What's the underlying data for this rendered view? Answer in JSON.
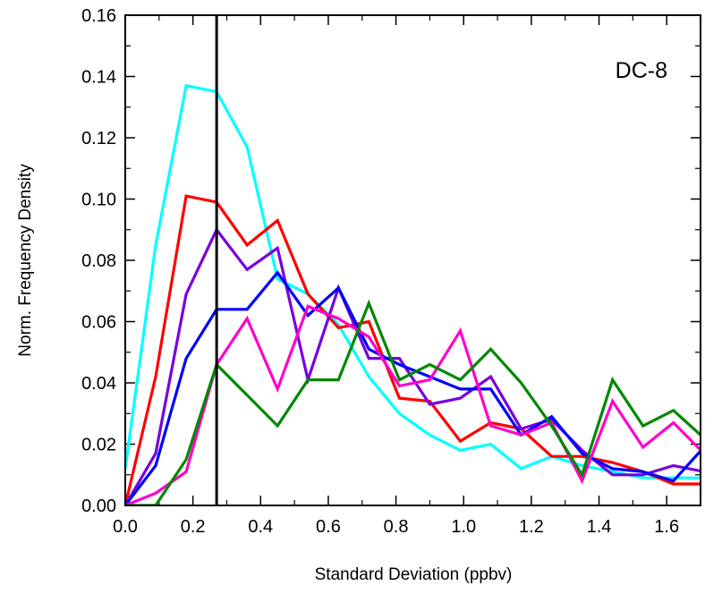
{
  "chart_data": {
    "type": "line",
    "title": "",
    "xlabel": "Standard Deviation (ppbv)",
    "ylabel": "Norm. Frequency Density",
    "annotation": "DC-8",
    "xlim": [
      0,
      1.7
    ],
    "ylim": [
      0,
      0.16
    ],
    "x_ticks": [
      "0.0",
      "0.2",
      "0.4",
      "0.6",
      "0.8",
      "1.0",
      "1.2",
      "1.4",
      "1.6"
    ],
    "y_ticks": [
      "0.00",
      "0.02",
      "0.04",
      "0.06",
      "0.08",
      "0.10",
      "0.12",
      "0.14",
      "0.16"
    ],
    "vertical_line_x": 0.27,
    "vertical_line_color": "#000000",
    "x": [
      0.0,
      0.09,
      0.18,
      0.27,
      0.36,
      0.45,
      0.54,
      0.63,
      0.72,
      0.81,
      0.9,
      0.99,
      1.08,
      1.17,
      1.26,
      1.35,
      1.44,
      1.53,
      1.62,
      1.71
    ],
    "series": [
      {
        "color": "#00ffff",
        "values": [
          0.012,
          0.085,
          0.137,
          0.135,
          0.117,
          0.074,
          0.069,
          0.059,
          0.042,
          0.03,
          0.023,
          0.018,
          0.02,
          0.012,
          0.016,
          0.013,
          0.011,
          0.009,
          0.009,
          0.009
        ]
      },
      {
        "color": "#ff0000",
        "values": [
          0.0,
          0.042,
          0.101,
          0.099,
          0.085,
          0.093,
          0.069,
          0.058,
          0.06,
          0.035,
          0.034,
          0.021,
          0.027,
          0.025,
          0.016,
          0.016,
          0.014,
          0.011,
          0.007,
          0.007
        ]
      },
      {
        "color": "#7700dd",
        "values": [
          0.0,
          0.017,
          0.069,
          0.09,
          0.077,
          0.084,
          0.041,
          0.071,
          0.048,
          0.048,
          0.033,
          0.035,
          0.042,
          0.025,
          0.028,
          0.018,
          0.01,
          0.01,
          0.013,
          0.011
        ]
      },
      {
        "color": "#0000ff",
        "values": [
          0.0,
          0.013,
          0.048,
          0.064,
          0.064,
          0.076,
          0.062,
          0.071,
          0.051,
          0.046,
          0.042,
          0.038,
          0.038,
          0.023,
          0.029,
          0.017,
          0.012,
          0.011,
          0.008,
          0.019
        ]
      },
      {
        "color": "#ff00cc",
        "values": [
          0.0,
          0.004,
          0.011,
          0.046,
          0.061,
          0.038,
          0.065,
          0.061,
          0.055,
          0.039,
          0.041,
          0.057,
          0.026,
          0.023,
          0.027,
          0.008,
          0.034,
          0.019,
          0.027,
          0.017
        ]
      },
      {
        "color": "#008800",
        "values": [
          0.0,
          0.0,
          0.015,
          0.046,
          0.036,
          0.026,
          0.041,
          0.041,
          0.066,
          0.041,
          0.046,
          0.041,
          0.051,
          0.04,
          0.026,
          0.01,
          0.041,
          0.026,
          0.031,
          0.022
        ]
      }
    ]
  }
}
